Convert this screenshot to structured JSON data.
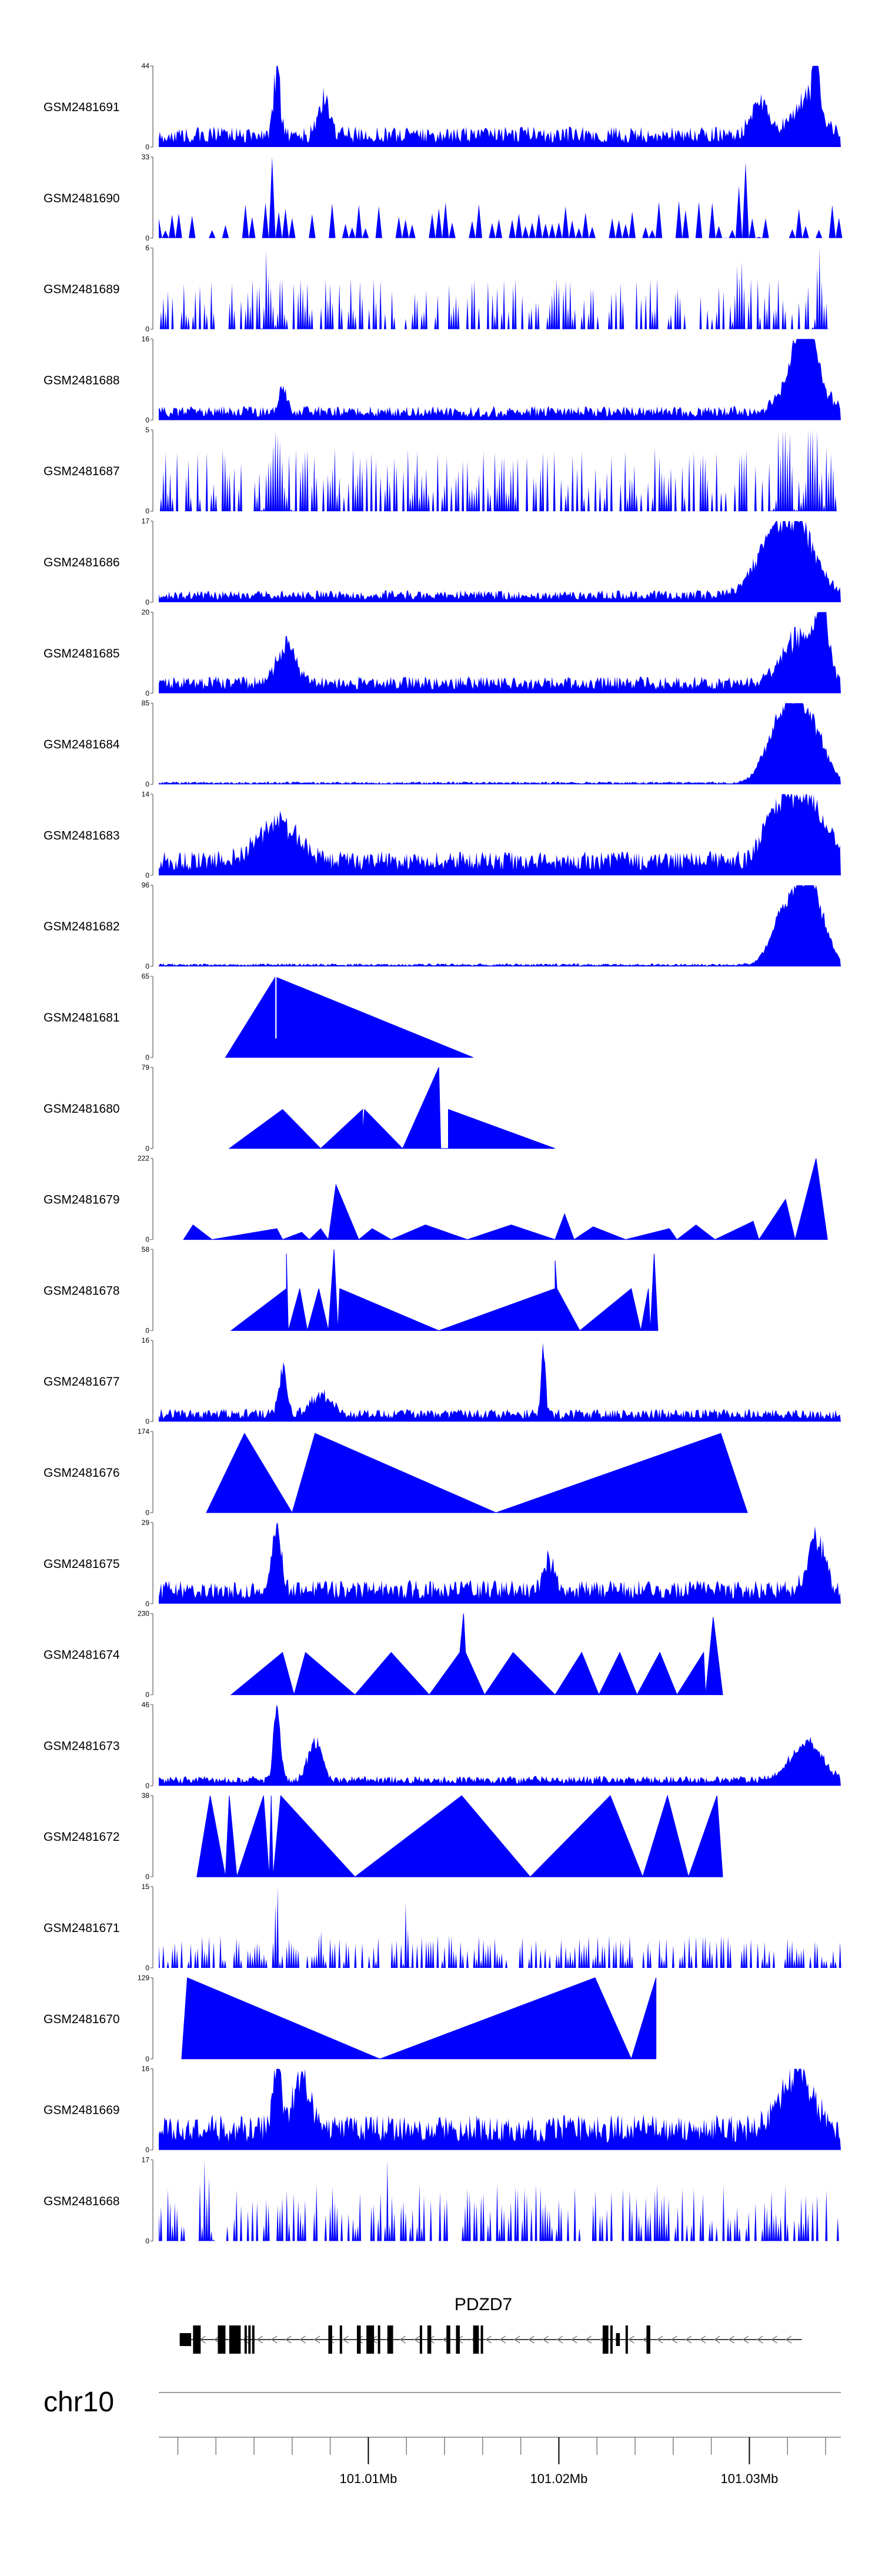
{
  "chart_data": {
    "type": "area",
    "title": "",
    "chromosome": "chr10",
    "fill_color": "#0000ff",
    "xlim_mb": [
      100.999,
      101.0348
    ],
    "tracks": [
      {
        "name": "GSM2481691",
        "ymax": 44,
        "ymin": 0,
        "style": "dense",
        "peaks": [
          [
            101.0052,
            38,
            0.00025
          ],
          [
            101.0077,
            22,
            0.0004
          ],
          [
            101.0305,
            20,
            0.0006
          ],
          [
            101.0335,
            38,
            0.0002
          ],
          [
            101.033,
            22,
            0.001
          ]
        ],
        "base": 8
      },
      {
        "name": "GSM2481690",
        "ymax": 33,
        "ymin": 0,
        "style": "sparse",
        "peaks": [
          [
            101.0049,
            30,
            0.0001
          ],
          [
            101.0297,
            30,
            0.0004
          ],
          [
            101.0325,
            18,
            0.0001
          ],
          [
            101.0265,
            18,
            0.0002
          ]
        ],
        "base": 10
      },
      {
        "name": "GSM2481689",
        "ymax": 6,
        "ymin": 0,
        "style": "spiky",
        "peaks": [
          [
            101.0294,
            4.5,
            0.0002
          ],
          [
            101.0337,
            5.5,
            0.0002
          ],
          [
            101.0048,
            4.5,
            0.0002
          ]
        ],
        "base": 2.5
      },
      {
        "name": "GSM2481688",
        "ymax": 16,
        "ymin": 0,
        "style": "dense",
        "peaks": [
          [
            101.0055,
            5,
            0.0003
          ],
          [
            101.0328,
            14,
            0.0012
          ],
          [
            101.033,
            12,
            0.0005
          ]
        ],
        "base": 2
      },
      {
        "name": "GSM2481687",
        "ymax": 5,
        "ymin": 0,
        "style": "spiky",
        "peaks": [
          [
            101.0052,
            4.8,
            0.0004
          ],
          [
            101.0318,
            4.6,
            0.0003
          ],
          [
            101.0333,
            4.8,
            0.0004
          ]
        ],
        "base": 2.6
      },
      {
        "name": "GSM2481686",
        "ymax": 17,
        "ymin": 0,
        "style": "dense",
        "peaks": [
          [
            101.0325,
            15,
            0.0014
          ],
          [
            101.031,
            9,
            0.0012
          ]
        ],
        "base": 1.8
      },
      {
        "name": "GSM2481685",
        "ymax": 20,
        "ymin": 0,
        "style": "dense",
        "peaks": [
          [
            101.0057,
            10,
            0.0007
          ],
          [
            101.0338,
            18,
            0.0005
          ],
          [
            101.0325,
            12,
            0.0012
          ]
        ],
        "base": 3
      },
      {
        "name": "GSM2481684",
        "ymax": 85,
        "ymin": 0,
        "style": "dense",
        "peaks": [
          [
            101.0322,
            75,
            0.0008
          ],
          [
            101.0333,
            60,
            0.001
          ],
          [
            101.0312,
            40,
            0.0009
          ]
        ],
        "base": 2
      },
      {
        "name": "GSM2481683",
        "ymax": 14,
        "ymin": 0,
        "style": "dense",
        "peaks": [
          [
            101.0052,
            7,
            0.0015
          ],
          [
            101.033,
            11,
            0.0015
          ],
          [
            101.0315,
            8,
            0.001
          ]
        ],
        "base": 3
      },
      {
        "name": "GSM2481682",
        "ymax": 96,
        "ymin": 0,
        "style": "dense",
        "peaks": [
          [
            101.0326,
            85,
            0.0009
          ],
          [
            101.0335,
            60,
            0.0009
          ],
          [
            101.0315,
            40,
            0.0008
          ]
        ],
        "base": 2.5
      },
      {
        "name": "GSM2481681",
        "ymax": 65,
        "ymin": 0,
        "style": "triangles",
        "segments": [
          [
            101.0025,
            0
          ],
          [
            101.0051,
            64
          ],
          [
            101.0051,
            15
          ],
          [
            101.0052,
            15
          ],
          [
            101.0052,
            64
          ],
          [
            101.0155,
            0
          ]
        ]
      },
      {
        "name": "GSM2481680",
        "ymax": 79,
        "ymin": 0,
        "style": "triangles",
        "segments": [
          [
            101.0027,
            0
          ],
          [
            101.0055,
            38
          ],
          [
            101.0075,
            0
          ],
          [
            101.0097,
            38
          ],
          [
            101.0097,
            15
          ],
          [
            101.0098,
            38
          ],
          [
            101.0118,
            0
          ],
          [
            101.0137,
            79
          ],
          [
            101.0138,
            0
          ],
          [
            101.0142,
            0
          ],
          [
            101.0142,
            38
          ],
          [
            101.0198,
            0
          ]
        ]
      },
      {
        "name": "GSM2481679",
        "ymax": 222,
        "ymin": 0,
        "style": "triangles",
        "segments": [
          [
            101.0003,
            0
          ],
          [
            101.0008,
            40
          ],
          [
            101.0018,
            0
          ],
          [
            101.0052,
            30
          ],
          [
            101.0055,
            0
          ],
          [
            101.0065,
            20
          ],
          [
            101.0069,
            0
          ],
          [
            101.0075,
            30
          ],
          [
            101.0079,
            0
          ],
          [
            101.0083,
            150
          ],
          [
            101.0095,
            0
          ],
          [
            101.0102,
            30
          ],
          [
            101.0112,
            0
          ],
          [
            101.013,
            40
          ],
          [
            101.0152,
            0
          ],
          [
            101.0175,
            40
          ],
          [
            101.0198,
            0
          ],
          [
            101.0203,
            70
          ],
          [
            101.0208,
            0
          ],
          [
            101.0218,
            35
          ],
          [
            101.0235,
            0
          ],
          [
            101.0258,
            30
          ],
          [
            101.0262,
            0
          ],
          [
            101.0272,
            40
          ],
          [
            101.0282,
            0
          ],
          [
            101.0302,
            50
          ],
          [
            101.0305,
            0
          ],
          [
            101.0319,
            110
          ],
          [
            101.0324,
            0
          ],
          [
            101.0335,
            222
          ],
          [
            101.0341,
            0
          ]
        ]
      },
      {
        "name": "GSM2481678",
        "ymax": 58,
        "ymin": 0,
        "style": "triangles",
        "segments": [
          [
            101.0028,
            0
          ],
          [
            101.0057,
            30
          ],
          [
            101.0057,
            55
          ],
          [
            101.0058,
            0
          ],
          [
            101.0064,
            30
          ],
          [
            101.0068,
            0
          ],
          [
            101.0074,
            30
          ],
          [
            101.0079,
            0
          ],
          [
            101.0082,
            58
          ],
          [
            101.0084,
            0
          ],
          [
            101.0085,
            30
          ],
          [
            101.0137,
            0
          ],
          [
            101.0198,
            30
          ],
          [
            101.0198,
            50
          ],
          [
            101.0199,
            30
          ],
          [
            101.0211,
            0
          ],
          [
            101.0238,
            30
          ],
          [
            101.0243,
            0
          ],
          [
            101.0247,
            30
          ],
          [
            101.0248,
            0
          ],
          [
            101.025,
            55
          ],
          [
            101.0252,
            0
          ]
        ]
      },
      {
        "name": "GSM2481677",
        "ymax": 16,
        "ymin": 0,
        "style": "dense",
        "peaks": [
          [
            101.0055,
            9,
            0.0003
          ],
          [
            101.0192,
            15,
            0.00015
          ],
          [
            101.0075,
            4,
            0.0008
          ]
        ],
        "base": 1.8
      },
      {
        "name": "GSM2481676",
        "ymax": 174,
        "ymin": 0,
        "style": "triangles",
        "segments": [
          [
            101.0015,
            0
          ],
          [
            101.0035,
            170
          ],
          [
            101.006,
            0
          ],
          [
            101.0072,
            170
          ],
          [
            101.0167,
            0
          ],
          [
            101.0285,
            170
          ],
          [
            101.0299,
            0
          ]
        ]
      },
      {
        "name": "GSM2481675",
        "ymax": 29,
        "ymin": 0,
        "style": "dense",
        "peaks": [
          [
            101.0052,
            25,
            0.0003
          ],
          [
            101.0195,
            12,
            0.0004
          ],
          [
            101.0335,
            20,
            0.0006
          ]
        ],
        "base": 6
      },
      {
        "name": "GSM2481674",
        "ymax": 230,
        "ymin": 0,
        "style": "triangles",
        "segments": [
          [
            101.0028,
            0
          ],
          [
            101.0055,
            120
          ],
          [
            101.0061,
            0
          ],
          [
            101.0067,
            120
          ],
          [
            101.0093,
            0
          ],
          [
            101.0112,
            120
          ],
          [
            101.0132,
            0
          ],
          [
            101.0148,
            120
          ],
          [
            101.015,
            230
          ],
          [
            101.0151,
            120
          ],
          [
            101.0161,
            0
          ],
          [
            101.0176,
            120
          ],
          [
            101.0198,
            0
          ],
          [
            101.0212,
            120
          ],
          [
            101.0221,
            0
          ],
          [
            101.0232,
            120
          ],
          [
            101.0241,
            0
          ],
          [
            101.0253,
            120
          ],
          [
            101.0262,
            0
          ],
          [
            101.0276,
            120
          ],
          [
            101.0277,
            0
          ],
          [
            101.0281,
            220
          ],
          [
            101.0286,
            0
          ]
        ]
      },
      {
        "name": "GSM2481673",
        "ymax": 46,
        "ymin": 0,
        "style": "dense",
        "peaks": [
          [
            101.0052,
            44,
            0.00025
          ],
          [
            101.0072,
            25,
            0.0005
          ],
          [
            101.033,
            22,
            0.0012
          ]
        ],
        "base": 4
      },
      {
        "name": "GSM2481672",
        "ymax": 38,
        "ymin": 0,
        "style": "triangles",
        "segments": [
          [
            101.001,
            0
          ],
          [
            101.0017,
            38
          ],
          [
            101.0025,
            0
          ],
          [
            101.0027,
            38
          ],
          [
            101.0031,
            0
          ],
          [
            101.0045,
            38
          ],
          [
            101.0048,
            0
          ],
          [
            101.0049,
            38
          ],
          [
            101.005,
            0
          ],
          [
            101.0054,
            38
          ],
          [
            101.0093,
            0
          ],
          [
            101.0149,
            38
          ],
          [
            101.0185,
            0
          ],
          [
            101.0227,
            38
          ],
          [
            101.0244,
            0
          ],
          [
            101.0257,
            38
          ],
          [
            101.0268,
            0
          ],
          [
            101.0283,
            38
          ],
          [
            101.0286,
            0
          ]
        ]
      },
      {
        "name": "GSM2481671",
        "ymax": 15,
        "ymin": 0,
        "style": "spiky",
        "peaks": [
          [
            101.0052,
            14,
            0.0001
          ],
          [
            101.012,
            10,
            0.0001
          ],
          [
            101.0075,
            8,
            0.0001
          ]
        ],
        "base": 4
      },
      {
        "name": "GSM2481670",
        "ymax": 129,
        "ymin": 0,
        "style": "triangles",
        "segments": [
          [
            101.0002,
            0
          ],
          [
            101.0005,
            129
          ],
          [
            101.0106,
            0
          ],
          [
            101.0219,
            129
          ],
          [
            101.0238,
            0
          ],
          [
            101.0251,
            129
          ],
          [
            101.0251,
            0
          ]
        ]
      },
      {
        "name": "GSM2481669",
        "ymax": 16,
        "ymin": 0,
        "style": "dense",
        "peaks": [
          [
            101.0052,
            14,
            0.0003
          ],
          [
            101.0065,
            12,
            0.0006
          ],
          [
            101.0325,
            13,
            0.0012
          ]
        ],
        "base": 5
      },
      {
        "name": "GSM2481668",
        "ymax": 17,
        "ymin": 0,
        "style": "spiky",
        "peaks": [
          [
            101.011,
            16,
            0.0001
          ],
          [
            101.0015,
            12,
            0.0002
          ]
        ],
        "base": 8
      }
    ],
    "gene": {
      "name": "PDZD7",
      "strand": "-",
      "start_mb": 101.0001,
      "end_mb": 101.0325,
      "exons_mb": [
        [
          101.0001,
          101.0007,
          "utr"
        ],
        [
          101.0008,
          101.0012,
          "cds"
        ],
        [
          101.0021,
          101.0025,
          "cds"
        ],
        [
          101.0027,
          101.0033,
          "cds"
        ],
        [
          101.0035,
          101.0036,
          "cds"
        ],
        [
          101.0037,
          101.0038,
          "cds"
        ],
        [
          101.0039,
          101.004,
          "cds"
        ],
        [
          101.0079,
          101.0081,
          "cds"
        ],
        [
          101.0085,
          101.0086,
          "cds"
        ],
        [
          101.0094,
          101.0096,
          "cds"
        ],
        [
          101.0099,
          101.0103,
          "cds"
        ],
        [
          101.0105,
          101.0106,
          "cds"
        ],
        [
          101.011,
          101.0113,
          "cds"
        ],
        [
          101.0127,
          101.0128,
          "cds"
        ],
        [
          101.0131,
          101.0133,
          "cds"
        ],
        [
          101.0141,
          101.0143,
          "cds"
        ],
        [
          101.0146,
          101.0148,
          "cds"
        ],
        [
          101.0155,
          101.0158,
          "cds"
        ],
        [
          101.0159,
          101.016,
          "cds"
        ],
        [
          101.0223,
          101.0226,
          "cds"
        ],
        [
          101.0227,
          101.0228,
          "cds"
        ],
        [
          101.023,
          101.0232,
          "utr"
        ],
        [
          101.0235,
          101.0236,
          "cds"
        ],
        [
          101.0246,
          101.0248,
          "cds"
        ]
      ]
    },
    "axis": {
      "ticks_mb": [
        101.01,
        101.02,
        101.03
      ],
      "tick_labels": [
        "101.01Mb",
        "101.02Mb",
        "101.03Mb"
      ],
      "minor_ticks_mb": [
        101.0,
        101.002,
        101.004,
        101.006,
        101.008,
        101.01,
        101.012,
        101.014,
        101.016,
        101.018,
        101.02,
        101.022,
        101.024,
        101.026,
        101.028,
        101.03,
        101.032,
        101.034
      ]
    }
  }
}
